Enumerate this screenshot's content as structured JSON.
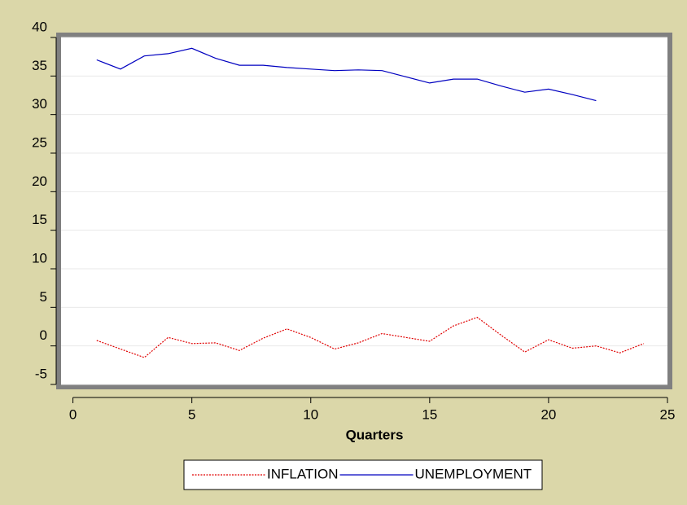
{
  "chart_data": {
    "type": "line",
    "xlabel": "Quarters",
    "x": [
      1,
      2,
      3,
      4,
      5,
      6,
      7,
      8,
      9,
      10,
      11,
      12,
      13,
      14,
      15,
      16,
      17,
      18,
      19,
      20,
      21,
      22,
      23,
      24
    ],
    "series": [
      {
        "name": "INFLATION",
        "color": "#e00000",
        "line_style": "dashed",
        "values": [
          0.7,
          -0.4,
          -1.5,
          1.1,
          0.3,
          0.4,
          -0.6,
          1.0,
          2.2,
          1.1,
          -0.4,
          0.4,
          1.6,
          1.1,
          0.6,
          2.6,
          3.7,
          1.4,
          -0.8,
          0.8,
          -0.3,
          0.0,
          -0.9,
          0.3
        ]
      },
      {
        "name": "UNEMPLOYMENT",
        "color": "#0000c0",
        "line_style": "solid",
        "values": [
          37.1,
          35.9,
          37.6,
          37.9,
          38.6,
          37.3,
          36.4,
          36.4,
          36.1,
          35.9,
          35.7,
          35.8,
          35.7,
          34.9,
          34.1,
          34.6,
          34.6,
          33.7,
          32.9,
          33.3,
          32.6,
          31.8,
          null,
          null
        ]
      }
    ],
    "xlim": [
      -0.5,
      25
    ],
    "ylim": [
      -5,
      40
    ],
    "xticks": [
      0,
      5,
      10,
      15,
      20,
      25
    ],
    "yticks": [
      -5,
      0,
      5,
      10,
      15,
      20,
      25,
      30,
      35,
      40
    ],
    "grid": true,
    "legend": "bottom"
  }
}
